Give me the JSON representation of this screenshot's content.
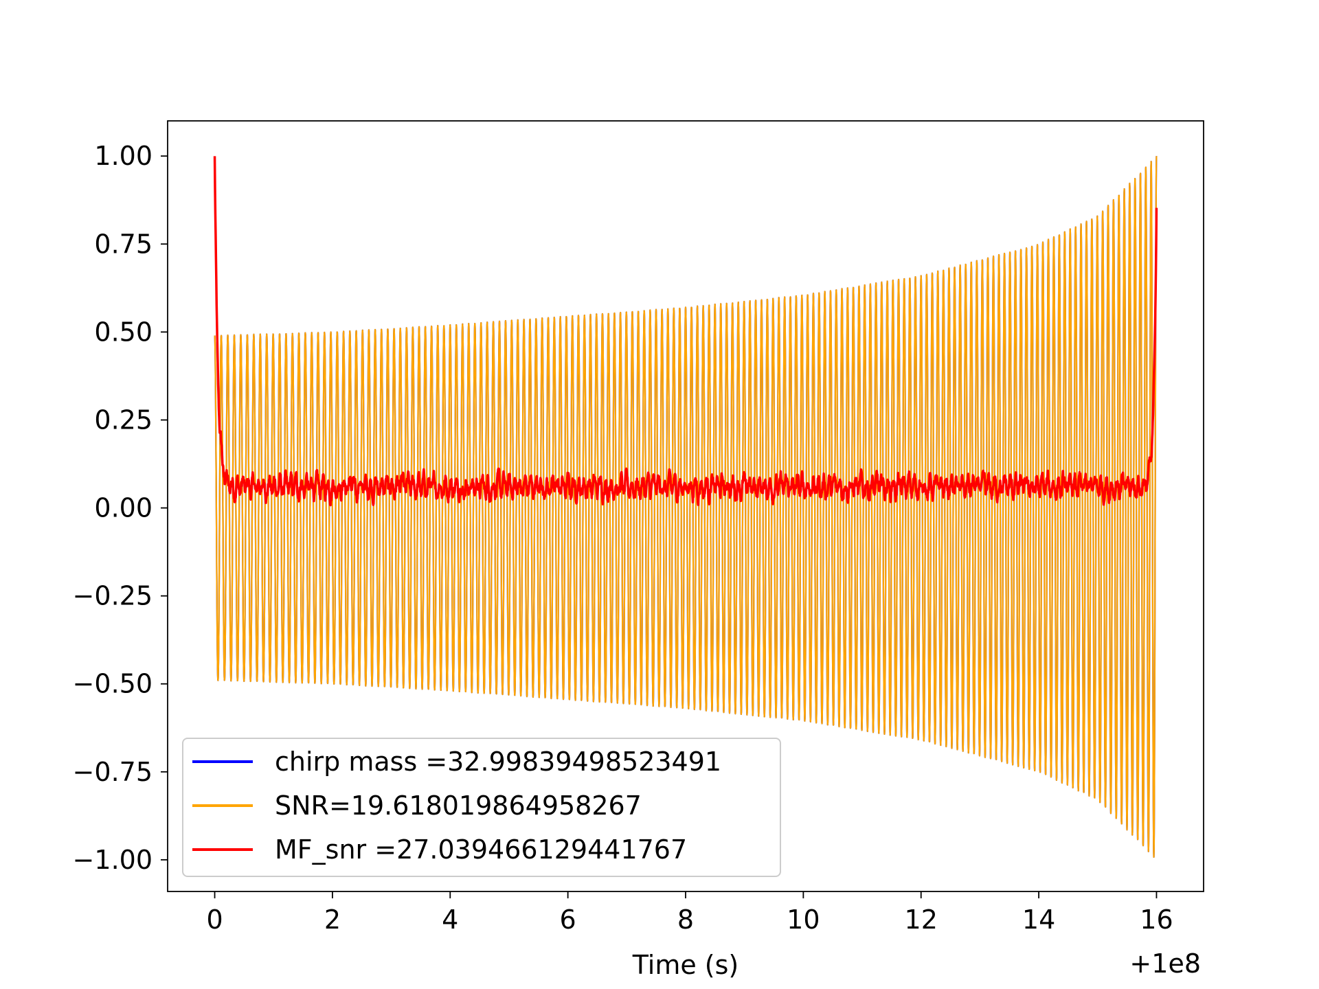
{
  "chart_data": {
    "type": "line",
    "title": "",
    "xlabel": "Time (s)",
    "ylabel": "",
    "x_offset_label": "+1e8",
    "xlim": [
      -0.8,
      16.8
    ],
    "ylim": [
      -1.09,
      1.1
    ],
    "xticks": [
      0,
      2,
      4,
      6,
      8,
      10,
      12,
      14,
      16
    ],
    "xtick_labels": [
      "0",
      "2",
      "4",
      "6",
      "8",
      "10",
      "12",
      "14",
      "16"
    ],
    "yticks": [
      1.0,
      0.75,
      0.5,
      0.25,
      0.0,
      -0.25,
      -0.5,
      -0.75,
      -1.0
    ],
    "ytick_labels": [
      "1.00",
      "0.75",
      "0.50",
      "0.25",
      "0.00",
      "−0.25",
      "−0.50",
      "−0.75",
      "−1.00"
    ],
    "grid": false,
    "legend_position": "lower-left",
    "series": [
      {
        "name": "chirp mass =32.99839498523491",
        "color": "#0000ff",
        "kind": "chirp",
        "t_start": 0.0,
        "t_end": 16.0,
        "envelope": [
          [
            0.0,
            0.49
          ],
          [
            2.0,
            0.5
          ],
          [
            4.0,
            0.52
          ],
          [
            6.0,
            0.545
          ],
          [
            8.0,
            0.57
          ],
          [
            10.0,
            0.605
          ],
          [
            12.0,
            0.66
          ],
          [
            14.0,
            0.75
          ],
          [
            15.0,
            0.83
          ],
          [
            16.0,
            1.0
          ]
        ],
        "cycles": 160
      },
      {
        "name": "SNR=19.618019864958267",
        "color": "#ffa500",
        "kind": "chirp",
        "t_start": 0.0,
        "t_end": 16.0,
        "envelope": [
          [
            0.0,
            0.49
          ],
          [
            2.0,
            0.5
          ],
          [
            4.0,
            0.52
          ],
          [
            6.0,
            0.545
          ],
          [
            8.0,
            0.57
          ],
          [
            10.0,
            0.605
          ],
          [
            12.0,
            0.66
          ],
          [
            14.0,
            0.75
          ],
          [
            15.0,
            0.83
          ],
          [
            16.0,
            1.0
          ]
        ],
        "cycles": 160
      },
      {
        "name": "MF_snr =27.039466129441767",
        "color": "#ff0000",
        "kind": "mf",
        "t_start": 0.0,
        "t_end": 16.0,
        "peak_start": 1.0,
        "peak_end": 0.88,
        "baseline": 0.04,
        "noise_range": [
          0.0,
          0.12
        ]
      }
    ]
  }
}
